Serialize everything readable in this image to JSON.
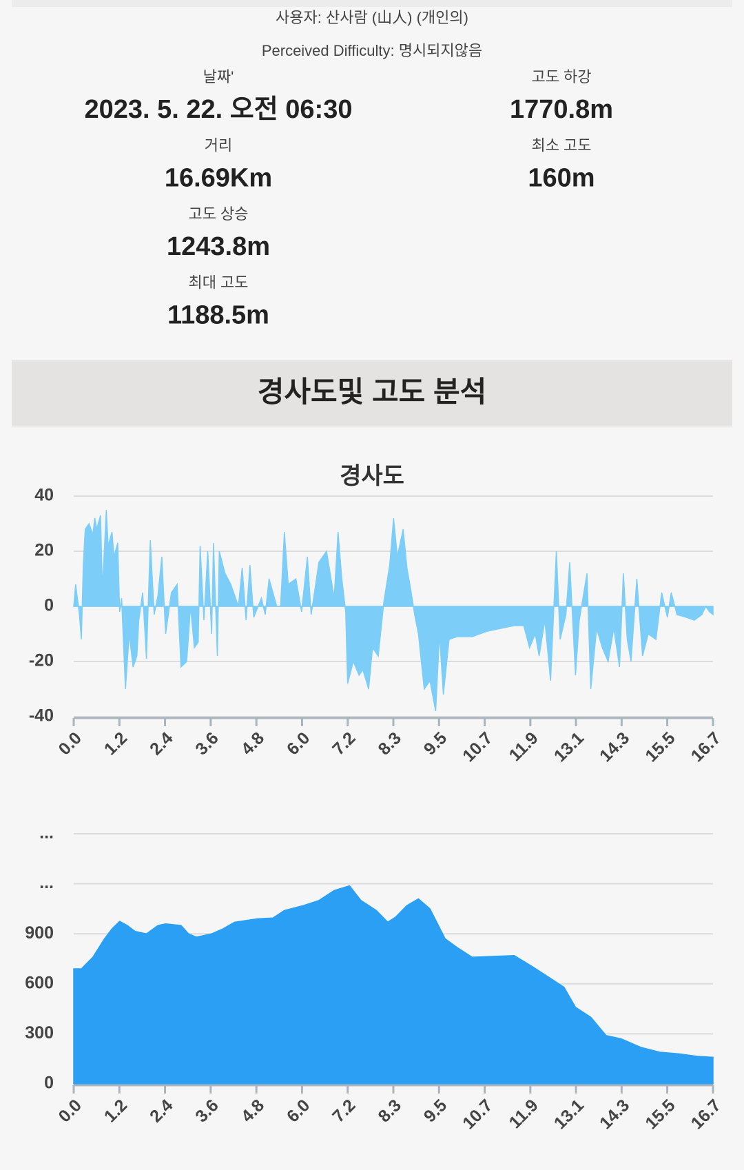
{
  "header": {
    "user": "사용자: 산사람 (山人) (개인의)",
    "difficulty": "Perceived Difficulty: 명시되지않음"
  },
  "stats": {
    "left": [
      {
        "label": "날짜'",
        "value": "2023. 5. 22. 오전 06:30"
      },
      {
        "label": "거리",
        "value": "16.69Km"
      },
      {
        "label": "고도 상승",
        "value": "1243.8m"
      },
      {
        "label": "최대 고도",
        "value": "1188.5m"
      }
    ],
    "right": [
      {
        "label": "고도 하강",
        "value": "1770.8m"
      },
      {
        "label": "최소 고도",
        "value": "160m"
      }
    ]
  },
  "section_title": "경사도및 고도 분석",
  "chart_data": [
    {
      "type": "area",
      "title": "경사도",
      "color": "#7ccdf8",
      "grid": true,
      "x": [
        0,
        0.05,
        0.15,
        0.2,
        0.25,
        0.3,
        0.4,
        0.5,
        0.55,
        0.6,
        0.7,
        0.75,
        0.85,
        0.9,
        1.0,
        1.05,
        1.15,
        1.2,
        1.25,
        1.35,
        1.45,
        1.55,
        1.65,
        1.7,
        1.8,
        1.9,
        2.0,
        2.1,
        2.2,
        2.3,
        2.4,
        2.55,
        2.7,
        2.8,
        2.95,
        3.05,
        3.15,
        3.25,
        3.3,
        3.4,
        3.5,
        3.6,
        3.65,
        3.75,
        3.8,
        3.95,
        4.1,
        4.3,
        4.4,
        4.5,
        4.6,
        4.7,
        4.9,
        5.0,
        5.1,
        5.3,
        5.4,
        5.5,
        5.6,
        5.8,
        5.95,
        6.1,
        6.2,
        6.4,
        6.6,
        6.8,
        6.9,
        7.0,
        7.1,
        7.15,
        7.3,
        7.45,
        7.55,
        7.7,
        7.8,
        7.95,
        8.1,
        8.25,
        8.35,
        8.45,
        8.6,
        8.7,
        8.8,
        8.9,
        9.0,
        9.15,
        9.3,
        9.45,
        9.55,
        9.65,
        9.8,
        10.0,
        10.4,
        10.8,
        11.5,
        11.75,
        11.9,
        12.05,
        12.15,
        12.3,
        12.45,
        12.6,
        12.7,
        12.85,
        12.95,
        13.1,
        13.2,
        13.4,
        13.5,
        13.65,
        13.8,
        13.95,
        14.1,
        14.25,
        14.35,
        14.45,
        14.55,
        14.7,
        14.85,
        15.0,
        15.2,
        15.35,
        15.5,
        15.6,
        15.75,
        16.0,
        16.2,
        16.4,
        16.5,
        16.6,
        16.69
      ],
      "values": [
        0,
        8,
        -3,
        -12,
        15,
        28,
        30,
        26,
        32,
        28,
        33,
        6,
        35,
        22,
        27,
        18,
        23,
        -2,
        3,
        -30,
        -10,
        -22,
        -18,
        -5,
        5,
        -19,
        24,
        -3,
        4,
        18,
        -10,
        5,
        8,
        -22,
        -20,
        0,
        -15,
        -13,
        22,
        -5,
        20,
        -10,
        23,
        -18,
        20,
        12,
        8,
        0,
        14,
        -5,
        15,
        -4,
        3,
        -3,
        10,
        0,
        0,
        27,
        8,
        10,
        -2,
        18,
        -3,
        16,
        20,
        3,
        27,
        10,
        -2,
        -28,
        -20,
        -25,
        -23,
        -30,
        -15,
        -18,
        2,
        15,
        32,
        18,
        28,
        14,
        6,
        -3,
        -10,
        -30,
        -27,
        -38,
        -10,
        -32,
        -12,
        -11,
        -11,
        -9,
        -7,
        -7,
        -15,
        -10,
        -18,
        -5,
        -27,
        20,
        -12,
        -3,
        16,
        -25,
        -5,
        12,
        -30,
        -8,
        -15,
        -20,
        -8,
        -22,
        12,
        -12,
        -20,
        10,
        -18,
        -10,
        -12,
        5,
        -4,
        5,
        -3,
        -4,
        -5,
        -3,
        0,
        -2,
        -3
      ],
      "xlim": [
        0,
        16.69
      ],
      "xticks": [
        {
          "value": 0,
          "label": "0.0"
        },
        {
          "value": 1.192,
          "label": "1.2"
        },
        {
          "value": 2.384,
          "label": "2.4"
        },
        {
          "value": 3.576,
          "label": "3.6"
        },
        {
          "value": 4.769,
          "label": "4.8"
        },
        {
          "value": 5.961,
          "label": "6.0"
        },
        {
          "value": 7.153,
          "label": "7.2"
        },
        {
          "value": 8.345,
          "label": "8.3"
        },
        {
          "value": 9.537,
          "label": "9.5"
        },
        {
          "value": 10.729,
          "label": "10.7"
        },
        {
          "value": 11.921,
          "label": "11.9"
        },
        {
          "value": 13.113,
          "label": "13.1"
        },
        {
          "value": 14.304,
          "label": "14.3"
        },
        {
          "value": 15.496,
          "label": "15.5"
        },
        {
          "value": 16.69,
          "label": "16.7"
        }
      ],
      "ylim": [
        -40,
        40
      ],
      "yticks": [
        -40,
        -20,
        0,
        20,
        40
      ]
    },
    {
      "type": "area",
      "color": "#2a9ff4",
      "grid": true,
      "x": [
        0,
        0.2,
        0.5,
        0.8,
        1.0,
        1.2,
        1.4,
        1.6,
        1.9,
        2.2,
        2.4,
        2.8,
        3.0,
        3.2,
        3.6,
        3.9,
        4.2,
        4.8,
        5.2,
        5.5,
        6.0,
        6.4,
        6.8,
        7.2,
        7.5,
        7.9,
        8.2,
        8.4,
        8.7,
        9.0,
        9.3,
        9.7,
        10.0,
        10.4,
        11.5,
        12.0,
        12.4,
        12.8,
        13.1,
        13.5,
        13.9,
        14.3,
        14.8,
        15.3,
        15.8,
        16.3,
        16.69
      ],
      "values": [
        690,
        690,
        760,
        870,
        930,
        975,
        950,
        915,
        900,
        950,
        960,
        950,
        900,
        880,
        900,
        930,
        970,
        990,
        995,
        1040,
        1070,
        1100,
        1160,
        1188,
        1100,
        1040,
        970,
        1000,
        1070,
        1110,
        1050,
        870,
        820,
        760,
        770,
        700,
        640,
        580,
        460,
        400,
        290,
        270,
        220,
        190,
        180,
        165,
        160
      ],
      "xlim": [
        0,
        16.69
      ],
      "xticks": [
        {
          "value": 0,
          "label": "0.0"
        },
        {
          "value": 1.192,
          "label": "1.2"
        },
        {
          "value": 2.384,
          "label": "2.4"
        },
        {
          "value": 3.576,
          "label": "3.6"
        },
        {
          "value": 4.769,
          "label": "4.8"
        },
        {
          "value": 5.961,
          "label": "6.0"
        },
        {
          "value": 7.153,
          "label": "7.2"
        },
        {
          "value": 8.345,
          "label": "8.3"
        },
        {
          "value": 9.537,
          "label": "9.5"
        },
        {
          "value": 10.729,
          "label": "10.7"
        },
        {
          "value": 11.921,
          "label": "11.9"
        },
        {
          "value": 13.113,
          "label": "13.1"
        },
        {
          "value": 14.304,
          "label": "14.3"
        },
        {
          "value": 15.496,
          "label": "15.5"
        },
        {
          "value": 16.69,
          "label": "16.7"
        }
      ],
      "ylim": [
        0,
        1500
      ],
      "yticks": [
        0,
        300,
        600,
        900,
        {
          "value": 1200,
          "label": "..."
        },
        {
          "value": 1500,
          "label": "..."
        }
      ]
    }
  ]
}
